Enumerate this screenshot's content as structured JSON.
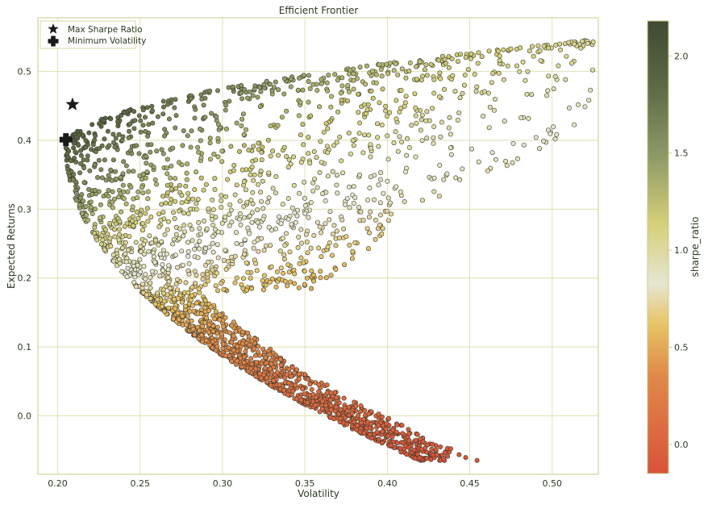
{
  "chart_data": {
    "type": "scatter",
    "title": "Efficient Frontier",
    "xlabel": "Volatility",
    "ylabel": "Expected Returns",
    "xlim": [
      0.188,
      0.528
    ],
    "ylim": [
      -0.085,
      0.578
    ],
    "x_ticks": [
      0.2,
      0.25,
      0.3,
      0.35,
      0.4,
      0.45,
      0.5
    ],
    "x_tick_labels": [
      "0.20",
      "0.25",
      "0.30",
      "0.35",
      "0.40",
      "0.45",
      "0.50"
    ],
    "y_ticks": [
      0.0,
      0.1,
      0.2,
      0.3,
      0.4,
      0.5
    ],
    "y_tick_labels": [
      "0.0",
      "0.1",
      "0.2",
      "0.3",
      "0.4",
      "0.5"
    ],
    "grid": true,
    "legend_position": "top-left",
    "legend": [
      {
        "label": "Max Sharpe Ratio",
        "marker": "star"
      },
      {
        "label": "Minimum Volatility",
        "marker": "plus"
      }
    ],
    "markers": {
      "max_sharpe": {
        "x": 0.209,
        "y": 0.452
      },
      "min_volatility": {
        "x": 0.205,
        "y": 0.401
      }
    },
    "colorbar": {
      "label": "sharpe_ratio",
      "range": [
        -0.15,
        2.18
      ],
      "ticks": [
        0.0,
        0.5,
        1.0,
        1.5,
        2.0
      ],
      "tick_labels": [
        "0.0",
        "0.5",
        "1.0",
        "1.5",
        "2.0"
      ],
      "colormap": [
        {
          "v": 0.0,
          "color": "#d9533b"
        },
        {
          "v": 0.22,
          "color": "#e08a4a"
        },
        {
          "v": 0.33,
          "color": "#e6c466"
        },
        {
          "v": 0.42,
          "color": "#e6e6d2"
        },
        {
          "v": 0.55,
          "color": "#d6d07a"
        },
        {
          "v": 0.7,
          "color": "#8e9a67"
        },
        {
          "v": 0.85,
          "color": "#5d6b47"
        },
        {
          "v": 1.0,
          "color": "#3f4a32"
        }
      ]
    },
    "series": [
      {
        "points_description": "random portfolios",
        "num_points": 2600,
        "frontier_vertex": {
          "x": 0.205,
          "y": 0.39
        },
        "frontier_upper_end": {
          "x": 0.52,
          "y": 0.545
        },
        "frontier_lower_end": {
          "x": 0.42,
          "y": -0.065
        }
      }
    ]
  },
  "colors": {
    "axis": "#c9c98a",
    "grid": "#d9d9a6",
    "text": "#2b3a21",
    "marker": "#1a1a1a",
    "point_edge": "#3a3a2a"
  }
}
